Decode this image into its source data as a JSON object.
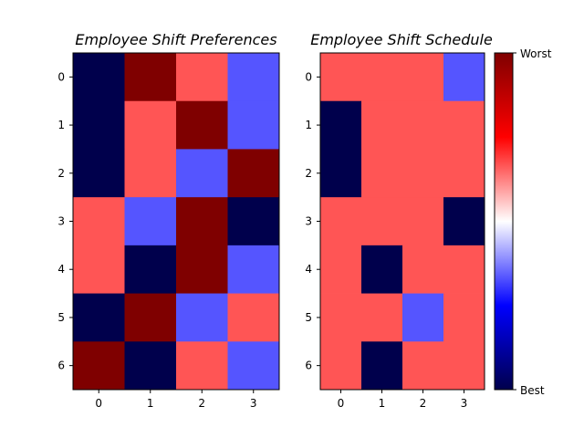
{
  "chart_data": [
    {
      "type": "heatmap",
      "title": "Employee Shift Preferences",
      "x_ticks": [
        "0",
        "1",
        "2",
        "3"
      ],
      "y_ticks": [
        "0",
        "1",
        "2",
        "3",
        "4",
        "5",
        "6"
      ],
      "values": [
        [
          0,
          3,
          2,
          1
        ],
        [
          0,
          2,
          3,
          1
        ],
        [
          0,
          2,
          1,
          3
        ],
        [
          2,
          1,
          3,
          0
        ],
        [
          2,
          0,
          3,
          1
        ],
        [
          0,
          3,
          1,
          2
        ],
        [
          3,
          0,
          2,
          1
        ]
      ],
      "vmin": 0,
      "vmax": 3,
      "colormap": "seismic"
    },
    {
      "type": "heatmap",
      "title": "Employee Shift Schedule",
      "x_ticks": [
        "0",
        "1",
        "2",
        "3"
      ],
      "y_ticks": [
        "0",
        "1",
        "2",
        "3",
        "4",
        "5",
        "6"
      ],
      "values": [
        [
          2,
          2,
          2,
          1
        ],
        [
          0,
          2,
          2,
          2
        ],
        [
          0,
          2,
          2,
          2
        ],
        [
          2,
          2,
          2,
          0
        ],
        [
          2,
          0,
          2,
          2
        ],
        [
          2,
          2,
          1,
          2
        ],
        [
          2,
          0,
          2,
          2
        ]
      ],
      "vmin": 0,
      "vmax": 3,
      "colormap": "seismic"
    }
  ],
  "colorbar": {
    "top_label": "Worst",
    "bottom_label": "Best",
    "colors": [
      "#00004c",
      "#0000ff",
      "#ffffff",
      "#ff0000",
      "#7f0000"
    ]
  }
}
